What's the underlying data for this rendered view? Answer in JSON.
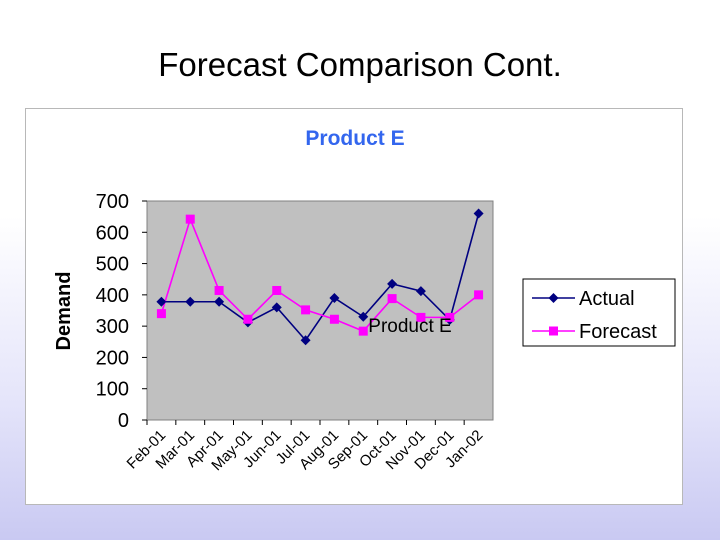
{
  "slide": {
    "title": "Forecast Comparison Cont."
  },
  "chart_data": {
    "type": "line",
    "title": "Product E",
    "overlay_label": "Product E",
    "xlabel": "",
    "ylabel": "Demand",
    "ylim": [
      0,
      700
    ],
    "yticks": [
      0,
      100,
      200,
      300,
      400,
      500,
      600,
      700
    ],
    "categories": [
      "Feb-01",
      "Mar-01",
      "Apr-01",
      "May-01",
      "Jun-01",
      "Jul-01",
      "Aug-01",
      "Sep-01",
      "Oct-01",
      "Nov-01",
      "Dec-01",
      "Jan-02"
    ],
    "grid": false,
    "plot_background": "#c0c0c0",
    "legend_position": "right",
    "title_color": "#3366ee",
    "series": [
      {
        "name": "Actual",
        "color": "#000080",
        "marker": "diamond",
        "values": [
          378,
          378,
          378,
          312,
          360,
          255,
          390,
          330,
          435,
          412,
          320,
          660
        ]
      },
      {
        "name": "Forecast",
        "color": "#ff00ff",
        "marker": "square",
        "values": [
          340,
          642,
          414,
          322,
          414,
          352,
          322,
          284,
          388,
          328,
          328,
          400
        ]
      }
    ]
  }
}
